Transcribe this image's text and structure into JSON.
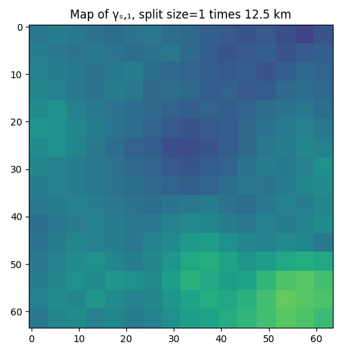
{
  "chart_data": {
    "type": "heatmap",
    "title": "Map of γₛ,₁, split size=1 times 12.5 km",
    "color": "viridis",
    "value_range": [
      0,
      1
    ],
    "xlim": [
      -0.5,
      63.5
    ],
    "ylim": [
      63.5,
      -0.5
    ],
    "xticks": [
      0,
      10,
      20,
      30,
      40,
      50,
      60
    ],
    "yticks": [
      0,
      10,
      20,
      30,
      40,
      50,
      60
    ],
    "cells": [
      [
        0.4,
        0.42,
        0.4,
        0.38,
        0.36,
        0.38,
        0.4,
        0.36,
        0.34,
        0.3,
        0.28,
        0.26,
        0.28,
        0.24,
        0.2,
        0.26
      ],
      [
        0.42,
        0.4,
        0.38,
        0.4,
        0.38,
        0.36,
        0.38,
        0.4,
        0.34,
        0.3,
        0.26,
        0.28,
        0.3,
        0.26,
        0.28,
        0.3
      ],
      [
        0.44,
        0.42,
        0.4,
        0.38,
        0.4,
        0.42,
        0.36,
        0.34,
        0.32,
        0.3,
        0.28,
        0.3,
        0.26,
        0.3,
        0.34,
        0.32
      ],
      [
        0.46,
        0.44,
        0.4,
        0.38,
        0.42,
        0.4,
        0.34,
        0.36,
        0.34,
        0.3,
        0.32,
        0.28,
        0.3,
        0.34,
        0.36,
        0.34
      ],
      [
        0.48,
        0.5,
        0.44,
        0.4,
        0.38,
        0.36,
        0.34,
        0.32,
        0.3,
        0.32,
        0.3,
        0.32,
        0.36,
        0.38,
        0.4,
        0.36
      ],
      [
        0.52,
        0.5,
        0.46,
        0.42,
        0.38,
        0.36,
        0.32,
        0.28,
        0.26,
        0.28,
        0.3,
        0.34,
        0.38,
        0.42,
        0.44,
        0.4
      ],
      [
        0.48,
        0.5,
        0.46,
        0.4,
        0.36,
        0.32,
        0.3,
        0.24,
        0.24,
        0.26,
        0.3,
        0.34,
        0.4,
        0.42,
        0.46,
        0.44
      ],
      [
        0.46,
        0.44,
        0.42,
        0.4,
        0.38,
        0.34,
        0.32,
        0.28,
        0.26,
        0.3,
        0.32,
        0.38,
        0.42,
        0.4,
        0.44,
        0.5
      ],
      [
        0.42,
        0.44,
        0.42,
        0.4,
        0.38,
        0.36,
        0.34,
        0.32,
        0.3,
        0.32,
        0.36,
        0.4,
        0.38,
        0.42,
        0.46,
        0.48
      ],
      [
        0.4,
        0.42,
        0.44,
        0.42,
        0.4,
        0.38,
        0.36,
        0.38,
        0.4,
        0.42,
        0.38,
        0.36,
        0.4,
        0.44,
        0.42,
        0.46
      ],
      [
        0.36,
        0.4,
        0.42,
        0.44,
        0.42,
        0.4,
        0.4,
        0.44,
        0.48,
        0.46,
        0.42,
        0.4,
        0.44,
        0.42,
        0.44,
        0.48
      ],
      [
        0.38,
        0.42,
        0.46,
        0.44,
        0.42,
        0.4,
        0.44,
        0.48,
        0.54,
        0.56,
        0.5,
        0.46,
        0.44,
        0.48,
        0.46,
        0.4
      ],
      [
        0.4,
        0.44,
        0.48,
        0.5,
        0.46,
        0.42,
        0.46,
        0.52,
        0.6,
        0.62,
        0.58,
        0.52,
        0.56,
        0.6,
        0.62,
        0.6
      ],
      [
        0.42,
        0.46,
        0.5,
        0.48,
        0.52,
        0.5,
        0.48,
        0.56,
        0.64,
        0.6,
        0.56,
        0.58,
        0.66,
        0.72,
        0.74,
        0.7
      ],
      [
        0.44,
        0.48,
        0.46,
        0.52,
        0.48,
        0.44,
        0.46,
        0.52,
        0.58,
        0.62,
        0.6,
        0.64,
        0.7,
        0.76,
        0.74,
        0.72
      ],
      [
        0.4,
        0.46,
        0.48,
        0.44,
        0.46,
        0.42,
        0.44,
        0.5,
        0.56,
        0.58,
        0.62,
        0.66,
        0.7,
        0.74,
        0.72,
        0.68
      ]
    ]
  }
}
